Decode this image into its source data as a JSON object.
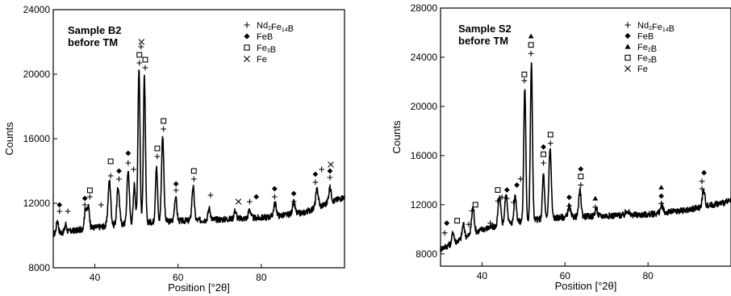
{
  "chart_data": [
    {
      "type": "line",
      "title": "",
      "annotation": [
        "Sample B2",
        "before TM"
      ],
      "xlabel": "Position [°2θ]",
      "ylabel": "Counts",
      "xlim": [
        30,
        100
      ],
      "ylim": [
        8000,
        24000
      ],
      "xticks": [
        40,
        60,
        80
      ],
      "yticks": [
        8000,
        12000,
        16000,
        20000,
        24000
      ],
      "legend": {
        "placement": "top-right",
        "entries": [
          {
            "marker": "plus",
            "label": "Nd2Fe14B"
          },
          {
            "marker": "diamond",
            "label": "FeB"
          },
          {
            "marker": "square",
            "label": "Fe3B"
          },
          {
            "marker": "cross",
            "label": "Fe"
          }
        ]
      },
      "background": [
        [
          30,
          10100
        ],
        [
          40,
          10500
        ],
        [
          50,
          10800
        ],
        [
          60,
          10900
        ],
        [
          70,
          11000
        ],
        [
          80,
          11100
        ],
        [
          90,
          11400
        ],
        [
          100,
          12400
        ]
      ],
      "peaks": [
        {
          "x": 31,
          "h": 800,
          "w": 0.35
        },
        {
          "x": 33,
          "h": 500,
          "w": 0.3
        },
        {
          "x": 37.8,
          "h": 1300,
          "w": 0.45
        },
        {
          "x": 38.5,
          "h": 1200,
          "w": 0.35
        },
        {
          "x": 43.5,
          "h": 2800,
          "w": 0.45
        },
        {
          "x": 45.6,
          "h": 2300,
          "w": 0.45
        },
        {
          "x": 48,
          "h": 3300,
          "w": 0.4
        },
        {
          "x": 49.5,
          "h": 2400,
          "w": 0.35
        },
        {
          "x": 50.6,
          "h": 9600,
          "w": 0.35
        },
        {
          "x": 51.9,
          "h": 9000,
          "w": 0.35
        },
        {
          "x": 54.8,
          "h": 3400,
          "w": 0.35
        },
        {
          "x": 56.3,
          "h": 5300,
          "w": 0.4
        },
        {
          "x": 59.4,
          "h": 1500,
          "w": 0.4
        },
        {
          "x": 63.6,
          "h": 2100,
          "w": 0.4
        },
        {
          "x": 67.5,
          "h": 700,
          "w": 0.4
        },
        {
          "x": 73.7,
          "h": 500,
          "w": 0.4
        },
        {
          "x": 77.2,
          "h": 550,
          "w": 0.4
        },
        {
          "x": 83.3,
          "h": 800,
          "w": 0.45
        },
        {
          "x": 87.8,
          "h": 700,
          "w": 0.45
        },
        {
          "x": 93.4,
          "h": 1100,
          "w": 0.45
        },
        {
          "x": 96.5,
          "h": 900,
          "w": 0.45
        }
      ],
      "markers": [
        {
          "x": 31.5,
          "y": 11500,
          "m": "plus"
        },
        {
          "x": 31.5,
          "y": 11900,
          "m": "diamond"
        },
        {
          "x": 33.5,
          "y": 11500,
          "m": "plus"
        },
        {
          "x": 37.6,
          "y": 11900,
          "m": "plus"
        },
        {
          "x": 37.6,
          "y": 12300,
          "m": "diamond"
        },
        {
          "x": 38.8,
          "y": 12400,
          "m": "plus"
        },
        {
          "x": 38.8,
          "y": 12800,
          "m": "square"
        },
        {
          "x": 41.5,
          "y": 11900,
          "m": "plus"
        },
        {
          "x": 43.8,
          "y": 13700,
          "m": "plus"
        },
        {
          "x": 43.8,
          "y": 14600,
          "m": "square"
        },
        {
          "x": 45.8,
          "y": 13500,
          "m": "plus"
        },
        {
          "x": 45.8,
          "y": 14000,
          "m": "diamond"
        },
        {
          "x": 48,
          "y": 14500,
          "m": "plus"
        },
        {
          "x": 48,
          "y": 15100,
          "m": "diamond"
        },
        {
          "x": 49.3,
          "y": 14100,
          "m": "plus"
        },
        {
          "x": 50.7,
          "y": 20700,
          "m": "plus"
        },
        {
          "x": 50.7,
          "y": 21200,
          "m": "square"
        },
        {
          "x": 51.1,
          "y": 21700,
          "m": "plus"
        },
        {
          "x": 51.2,
          "y": 22000,
          "m": "cross"
        },
        {
          "x": 52.1,
          "y": 20400,
          "m": "plus"
        },
        {
          "x": 52.1,
          "y": 20900,
          "m": "square"
        },
        {
          "x": 55,
          "y": 14900,
          "m": "plus"
        },
        {
          "x": 55,
          "y": 15400,
          "m": "square"
        },
        {
          "x": 56.5,
          "y": 16600,
          "m": "plus"
        },
        {
          "x": 56.5,
          "y": 17100,
          "m": "square"
        },
        {
          "x": 59.5,
          "y": 12800,
          "m": "plus"
        },
        {
          "x": 59.5,
          "y": 13200,
          "m": "diamond"
        },
        {
          "x": 63.8,
          "y": 13500,
          "m": "plus"
        },
        {
          "x": 63.8,
          "y": 14000,
          "m": "square"
        },
        {
          "x": 67.8,
          "y": 12500,
          "m": "plus"
        },
        {
          "x": 74.5,
          "y": 12100,
          "m": "cross"
        },
        {
          "x": 77.2,
          "y": 12100,
          "m": "plus"
        },
        {
          "x": 78.8,
          "y": 12400,
          "m": "diamond"
        },
        {
          "x": 83.2,
          "y": 12400,
          "m": "plus"
        },
        {
          "x": 83.2,
          "y": 12900,
          "m": "diamond"
        },
        {
          "x": 87.8,
          "y": 12100,
          "m": "plus"
        },
        {
          "x": 87.8,
          "y": 12600,
          "m": "diamond"
        },
        {
          "x": 93,
          "y": 13300,
          "m": "plus"
        },
        {
          "x": 93,
          "y": 13800,
          "m": "diamond"
        },
        {
          "x": 94.5,
          "y": 14100,
          "m": "plus"
        },
        {
          "x": 96.5,
          "y": 13600,
          "m": "plus"
        },
        {
          "x": 96.5,
          "y": 14000,
          "m": "diamond"
        },
        {
          "x": 96.7,
          "y": 14400,
          "m": "cross"
        }
      ]
    },
    {
      "type": "line",
      "title": "",
      "annotation": [
        "Sample S2",
        "before TM"
      ],
      "xlabel": "Position [°2θ]",
      "ylabel": "Counts",
      "xlim": [
        30,
        100
      ],
      "ylim": [
        7000,
        28000
      ],
      "xticks": [
        40,
        60,
        80
      ],
      "yticks": [
        8000,
        12000,
        16000,
        20000,
        24000,
        28000
      ],
      "legend": {
        "placement": "top-right",
        "entries": [
          {
            "marker": "plus",
            "label": "Nd2Fe14B"
          },
          {
            "marker": "diamond",
            "label": "FeB"
          },
          {
            "marker": "triangle",
            "label": "Fe2B"
          },
          {
            "marker": "square",
            "label": "Fe3B"
          },
          {
            "marker": "cross",
            "label": "Fe"
          }
        ]
      },
      "background": [
        [
          30,
          8400
        ],
        [
          40,
          10000
        ],
        [
          50,
          10700
        ],
        [
          60,
          11000
        ],
        [
          70,
          11100
        ],
        [
          80,
          11200
        ],
        [
          90,
          11600
        ],
        [
          100,
          12300
        ]
      ],
      "peaks": [
        {
          "x": 33,
          "h": 900,
          "w": 0.35
        },
        {
          "x": 35.5,
          "h": 1100,
          "w": 0.4
        },
        {
          "x": 37.8,
          "h": 2100,
          "w": 0.45
        },
        {
          "x": 44.2,
          "h": 2300,
          "w": 0.45
        },
        {
          "x": 45.8,
          "h": 2400,
          "w": 0.45
        },
        {
          "x": 48,
          "h": 2200,
          "w": 0.4
        },
        {
          "x": 50.3,
          "h": 10800,
          "w": 0.35
        },
        {
          "x": 51.9,
          "h": 12700,
          "w": 0.35
        },
        {
          "x": 54.8,
          "h": 3700,
          "w": 0.35
        },
        {
          "x": 56.4,
          "h": 5700,
          "w": 0.4
        },
        {
          "x": 61,
          "h": 900,
          "w": 0.4
        },
        {
          "x": 63.6,
          "h": 2100,
          "w": 0.4
        },
        {
          "x": 67.5,
          "h": 600,
          "w": 0.4
        },
        {
          "x": 75,
          "h": 400,
          "w": 0.4
        },
        {
          "x": 83.3,
          "h": 600,
          "w": 0.45
        },
        {
          "x": 93.4,
          "h": 1300,
          "w": 0.45
        }
      ],
      "markers": [
        {
          "x": 31,
          "y": 9700,
          "m": "plus"
        },
        {
          "x": 31.5,
          "y": 10500,
          "m": "diamond"
        },
        {
          "x": 34,
          "y": 10700,
          "m": "square"
        },
        {
          "x": 36.8,
          "y": 10400,
          "m": "plus"
        },
        {
          "x": 37.6,
          "y": 11500,
          "m": "plus"
        },
        {
          "x": 38.4,
          "y": 12000,
          "m": "square"
        },
        {
          "x": 42,
          "y": 10500,
          "m": "plus"
        },
        {
          "x": 43.8,
          "y": 12300,
          "m": "plus"
        },
        {
          "x": 43.8,
          "y": 13200,
          "m": "square"
        },
        {
          "x": 44.8,
          "y": 12600,
          "m": "plus"
        },
        {
          "x": 46,
          "y": 12500,
          "m": "plus"
        },
        {
          "x": 46,
          "y": 13200,
          "m": "diamond"
        },
        {
          "x": 47.6,
          "y": 12200,
          "m": "plus"
        },
        {
          "x": 48.4,
          "y": 13600,
          "m": "diamond"
        },
        {
          "x": 49.3,
          "y": 14100,
          "m": "plus"
        },
        {
          "x": 50.2,
          "y": 22100,
          "m": "plus"
        },
        {
          "x": 50.2,
          "y": 22600,
          "m": "square"
        },
        {
          "x": 51.8,
          "y": 24300,
          "m": "plus"
        },
        {
          "x": 51.8,
          "y": 25000,
          "m": "square"
        },
        {
          "x": 51.8,
          "y": 25700,
          "m": "triangle"
        },
        {
          "x": 54.8,
          "y": 15400,
          "m": "plus"
        },
        {
          "x": 54.8,
          "y": 16100,
          "m": "square"
        },
        {
          "x": 54.8,
          "y": 16700,
          "m": "diamond"
        },
        {
          "x": 56.5,
          "y": 17000,
          "m": "plus"
        },
        {
          "x": 56.5,
          "y": 17700,
          "m": "square"
        },
        {
          "x": 61,
          "y": 11900,
          "m": "plus"
        },
        {
          "x": 61,
          "y": 12600,
          "m": "diamond"
        },
        {
          "x": 63.8,
          "y": 13600,
          "m": "plus"
        },
        {
          "x": 63.8,
          "y": 14300,
          "m": "square"
        },
        {
          "x": 63.8,
          "y": 14900,
          "m": "diamond"
        },
        {
          "x": 67.3,
          "y": 11800,
          "m": "plus"
        },
        {
          "x": 67.3,
          "y": 12500,
          "m": "triangle"
        },
        {
          "x": 75,
          "y": 11400,
          "m": "cross"
        },
        {
          "x": 83.2,
          "y": 12100,
          "m": "plus"
        },
        {
          "x": 83.2,
          "y": 12700,
          "m": "diamond"
        },
        {
          "x": 83.2,
          "y": 13400,
          "m": "triangle"
        },
        {
          "x": 93,
          "y": 13300,
          "m": "plus"
        },
        {
          "x": 93,
          "y": 13900,
          "m": "plus"
        },
        {
          "x": 93.5,
          "y": 14600,
          "m": "diamond"
        }
      ]
    }
  ]
}
